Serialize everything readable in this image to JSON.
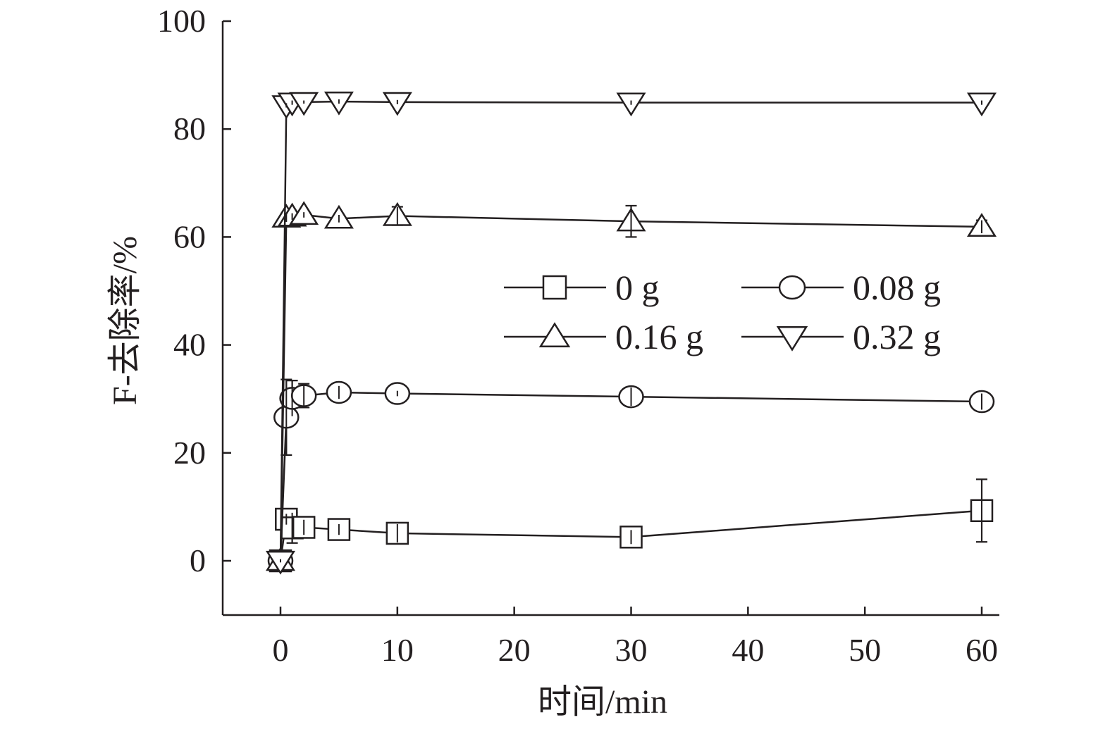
{
  "chart_data": {
    "type": "line",
    "title": "",
    "xlabel": "时间/min",
    "ylabel": "F-去除率/%",
    "xlim": [
      -5,
      61
    ],
    "ylim": [
      -10,
      100
    ],
    "xticks": [
      0,
      10,
      20,
      30,
      40,
      50,
      60
    ],
    "yticks": [
      0,
      20,
      40,
      60,
      80,
      100
    ],
    "grid": false,
    "legend_position": "center-right",
    "legend_columns": 2,
    "x": [
      0,
      0.5,
      1,
      2,
      5,
      10,
      30,
      60
    ],
    "series": [
      {
        "name": "0 g",
        "marker": "square",
        "values": [
          0,
          7.7,
          6.1,
          6.2,
          5.8,
          5.1,
          4.4,
          9.3
        ],
        "errors": [
          0.3,
          1.0,
          2.8,
          1.4,
          1.0,
          1.7,
          1.3,
          5.8
        ]
      },
      {
        "name": "0.08 g",
        "marker": "circle",
        "values": [
          0,
          26.6,
          30.1,
          30.6,
          31.2,
          31.0,
          30.4,
          29.5
        ],
        "errors": [
          0.3,
          7.0,
          3.3,
          2.2,
          1.2,
          0.5,
          1.7,
          1.5
        ]
      },
      {
        "name": "0.16 g",
        "marker": "triangle-up",
        "values": [
          0,
          63.6,
          63.8,
          64.1,
          63.4,
          63.9,
          62.9,
          61.9
        ],
        "errors": [
          0.3,
          0.8,
          0.6,
          0.5,
          0.7,
          1.7,
          2.9,
          1.2
        ]
      },
      {
        "name": "0.32 g",
        "marker": "triangle-down",
        "values": [
          0,
          84.4,
          84.9,
          85.0,
          85.1,
          85.0,
          84.9,
          84.9
        ],
        "errors": [
          0.3,
          0.4,
          0.4,
          0.3,
          0.4,
          0.4,
          0.4,
          0.4
        ]
      }
    ],
    "colors": {
      "line": "#231f20",
      "marker_fill": "#ffffff"
    }
  }
}
